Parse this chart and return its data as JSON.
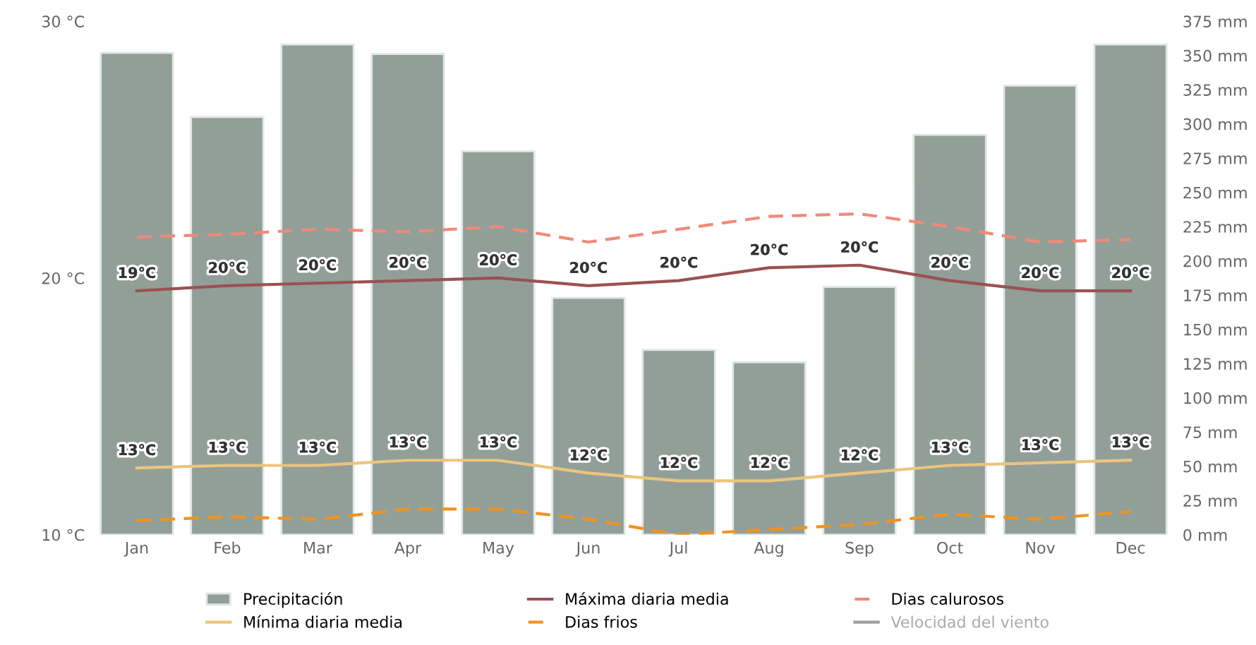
{
  "chart_data": {
    "type": "bar",
    "categories": [
      "Jan",
      "Feb",
      "Mar",
      "Apr",
      "May",
      "Jun",
      "Jul",
      "Aug",
      "Sep",
      "Oct",
      "Nov",
      "Dec"
    ],
    "ylim": [
      10,
      30
    ],
    "yticks": [
      {
        "value": 10,
        "label": "10 °C"
      },
      {
        "value": 20,
        "label": "20 °C"
      },
      {
        "value": 30,
        "label": "30 °C"
      }
    ],
    "y2lim": [
      0,
      375
    ],
    "y2ticks": [
      {
        "value": 0,
        "label": "0 mm"
      },
      {
        "value": 25,
        "label": "25 mm"
      },
      {
        "value": 50,
        "label": "50 mm"
      },
      {
        "value": 75,
        "label": "75 mm"
      },
      {
        "value": 100,
        "label": "100 mm"
      },
      {
        "value": 125,
        "label": "125 mm"
      },
      {
        "value": 150,
        "label": "150 mm"
      },
      {
        "value": 175,
        "label": "175 mm"
      },
      {
        "value": 200,
        "label": "200 mm"
      },
      {
        "value": 225,
        "label": "225 mm"
      },
      {
        "value": 250,
        "label": "250 mm"
      },
      {
        "value": 275,
        "label": "275 mm"
      },
      {
        "value": 300,
        "label": "300 mm"
      },
      {
        "value": 325,
        "label": "325 mm"
      },
      {
        "value": 350,
        "label": "350 mm"
      },
      {
        "value": 375,
        "label": "375 mm"
      }
    ],
    "grid": false,
    "legend": "bottom",
    "series": [
      {
        "name": "Precipitación",
        "type": "bar",
        "axis": "y2",
        "color": "#919f98",
        "values": [
          352,
          305,
          358,
          351,
          280,
          173,
          135,
          126,
          181,
          292,
          328,
          358
        ]
      },
      {
        "name": "Máxima diaria media",
        "type": "line",
        "line_style": "solid",
        "color": "#9b5153",
        "values": [
          19.5,
          19.7,
          19.8,
          19.9,
          20.0,
          19.7,
          19.9,
          20.4,
          20.5,
          19.9,
          19.5,
          19.5
        ],
        "value_labels": [
          "19°C",
          "20°C",
          "20°C",
          "20°C",
          "20°C",
          "20°C",
          "20°C",
          "20°C",
          "20°C",
          "20°C",
          "20°C",
          "20°C"
        ]
      },
      {
        "name": "Dias calurosos",
        "type": "line",
        "line_style": "dashed",
        "color": "#f08a78",
        "values": [
          21.6,
          21.7,
          21.9,
          21.8,
          22.0,
          21.4,
          21.9,
          22.4,
          22.5,
          22.0,
          21.4,
          21.5
        ]
      },
      {
        "name": "Mínima diaria media",
        "type": "line",
        "line_style": "solid",
        "color": "#ecc47e",
        "values": [
          12.6,
          12.7,
          12.7,
          12.9,
          12.9,
          12.4,
          12.1,
          12.1,
          12.4,
          12.7,
          12.8,
          12.9
        ],
        "value_labels": [
          "13°C",
          "13°C",
          "13°C",
          "13°C",
          "13°C",
          "12°C",
          "12°C",
          "12°C",
          "12°C",
          "13°C",
          "13°C",
          "13°C"
        ]
      },
      {
        "name": "Dias frios",
        "type": "line",
        "line_style": "dashed",
        "color": "#f0931f",
        "values": [
          10.55,
          10.7,
          10.6,
          11.0,
          11.0,
          10.6,
          10.0,
          10.2,
          10.4,
          10.8,
          10.6,
          10.9
        ]
      },
      {
        "name": "Velocidad del viento",
        "type": "line",
        "line_style": "solid",
        "color": "#a0a0a0",
        "values": [
          null,
          null,
          null,
          null,
          null,
          null,
          null,
          null,
          null,
          null,
          null,
          null
        ]
      }
    ]
  }
}
